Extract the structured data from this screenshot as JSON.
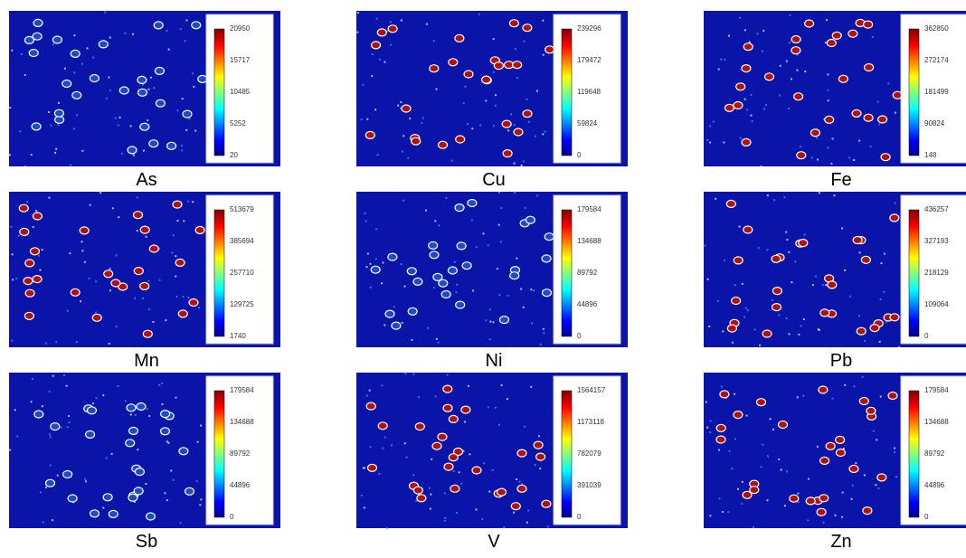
{
  "panels": [
    {
      "label": "As",
      "colorbar_ticks": [
        "20950",
        "15717",
        "10485",
        "5252",
        "20"
      ]
    },
    {
      "label": "Cu",
      "colorbar_ticks": [
        "239296",
        "179472",
        "119648",
        "59824",
        "0"
      ]
    },
    {
      "label": "Fe",
      "colorbar_ticks": [
        "362850",
        "272174",
        "181499",
        "90824",
        "148"
      ]
    },
    {
      "label": "Mn",
      "colorbar_ticks": [
        "513679",
        "385694",
        "257710",
        "129725",
        "1740"
      ]
    },
    {
      "label": "Ni",
      "colorbar_ticks": [
        "179584",
        "134688",
        "89792",
        "44896",
        "0"
      ]
    },
    {
      "label": "Pb",
      "colorbar_ticks": [
        "436257",
        "327193",
        "218129",
        "109064",
        "0"
      ]
    },
    {
      "label": "Sb",
      "colorbar_ticks": [
        "179584",
        "134688",
        "89792",
        "44896",
        "0"
      ]
    },
    {
      "label": "V",
      "colorbar_ticks": [
        "1564157",
        "1173118",
        "782079",
        "391039",
        "0"
      ]
    },
    {
      "label": "Zn",
      "colorbar_ticks": [
        "179584",
        "134688",
        "89792",
        "44896",
        "0"
      ]
    }
  ]
}
